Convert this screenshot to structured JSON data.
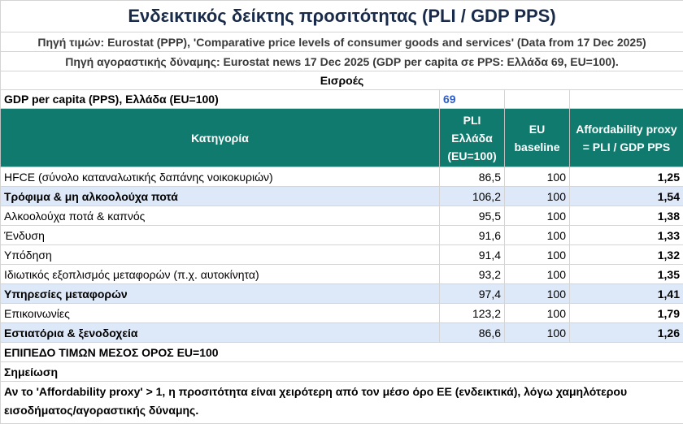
{
  "title": "Ενδεικτικός δείκτης προσιτότητας (PLI / GDP PPS)",
  "source_prices": "Πηγή τιμών: Eurostat (PPP), 'Comparative price levels of consumer goods and services' (Data from 17 Dec 2025)",
  "source_ppp": "Πηγή αγοραστικής δύναμης: Eurostat news 17 Dec 2025 (GDP per capita σε PPS: Ελλάδα 69, EU=100).",
  "inputs_label": "Εισροές",
  "gdp": {
    "label": "GDP per capita (PPS), Ελλάδα (EU=100)",
    "value": "69"
  },
  "headers": {
    "category": "Κατηγορία",
    "pli": "PLI Ελλάδα (EU=100)",
    "eu": "EU baseline",
    "affordability": "Affordability proxy = PLI / GDP PPS"
  },
  "rows": [
    {
      "category": "HFCE (σύνολο καταναλωτικής δαπάνης νοικοκυριών)",
      "pli": "86,5",
      "eu": "100",
      "aff": "1,25"
    },
    {
      "category": "Τρόφιμα & μη αλκοολούχα ποτά",
      "pli": "106,2",
      "eu": "100",
      "aff": "1,54"
    },
    {
      "category": "Αλκοολούχα ποτά & καπνός",
      "pli": "95,5",
      "eu": "100",
      "aff": "1,38"
    },
    {
      "category": "Ένδυση",
      "pli": "91,6",
      "eu": "100",
      "aff": "1,33"
    },
    {
      "category": "Υπόδηση",
      "pli": "91,4",
      "eu": "100",
      "aff": "1,32"
    },
    {
      "category": "Ιδιωτικός εξοπλισμός μεταφορών (π.χ. αυτοκίνητα)",
      "pli": "93,2",
      "eu": "100",
      "aff": "1,35"
    },
    {
      "category": "Υπηρεσίες μεταφορών",
      "pli": "97,4",
      "eu": "100",
      "aff": "1,41"
    },
    {
      "category": "Επικοινωνίες",
      "pli": "123,2",
      "eu": "100",
      "aff": "1,79"
    },
    {
      "category": "Εστιατόρια & ξενοδοχεία",
      "pli": "86,6",
      "eu": "100",
      "aff": "1,26"
    }
  ],
  "eu_level": "ΕΠΙΠΕΔΟ ΤΙΜΩΝ ΜΕΣΟΣ ΟΡΟΣ EU=100",
  "note_label": "Σημείωση",
  "note_text": "Αν το 'Affordability proxy' > 1, η προσιτότητα είναι χειρότερη από τον μέσο όρο ΕΕ (ενδεικτικά), λόγω χαμηλότερου εισοδήματος/αγοραστικής δύναμης."
}
